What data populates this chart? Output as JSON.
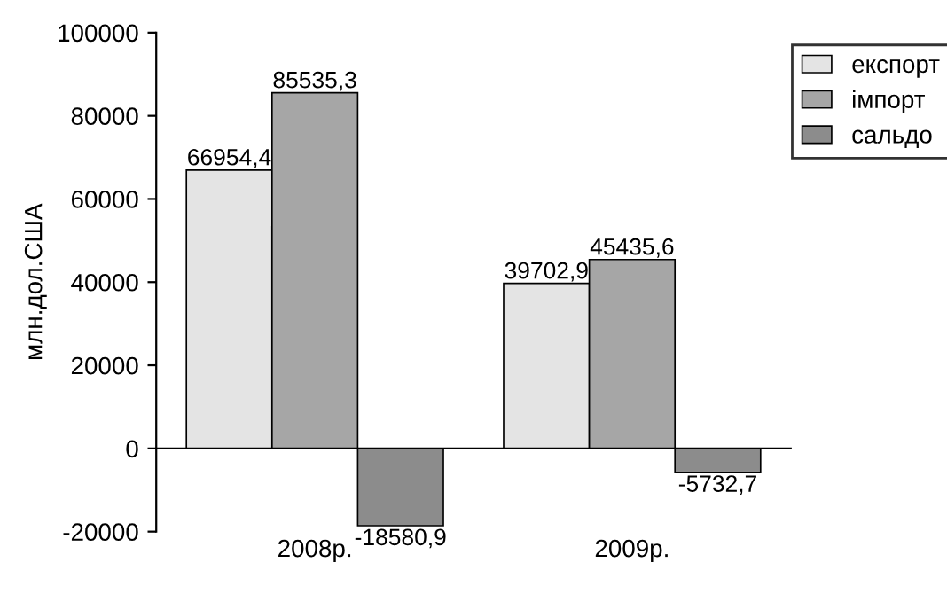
{
  "chart_data": {
    "type": "bar",
    "ylabel": "млн.дол.США",
    "categories": [
      "2008р.",
      "2009р."
    ],
    "series": [
      {
        "name": "експорт",
        "color": "#e4e4e4",
        "values": [
          66954.4,
          39702.9
        ],
        "value_labels": [
          "66954,4",
          "39702,9"
        ]
      },
      {
        "name": "імпорт",
        "color": "#a6a6a6",
        "values": [
          85535.3,
          45435.6
        ],
        "value_labels": [
          "85535,3",
          "45435,6"
        ]
      },
      {
        "name": "сальдо",
        "color": "#8c8c8c",
        "values": [
          -18580.9,
          -5732.7
        ],
        "value_labels": [
          "-18580,9",
          "-5732,7"
        ]
      }
    ],
    "ylim": [
      -20000,
      100000
    ],
    "yticks": [
      -20000,
      0,
      20000,
      40000,
      60000,
      80000,
      100000
    ],
    "legend": "top right"
  }
}
